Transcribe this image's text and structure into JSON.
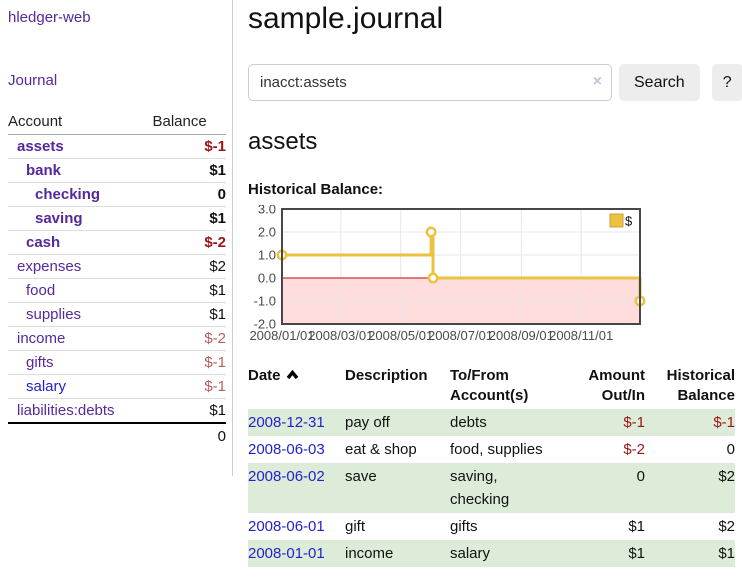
{
  "app": {
    "brand": "hledger-web",
    "nav_journal": "Journal"
  },
  "colors": {
    "link_purple": "#56289c",
    "link_blue": "#2222cc",
    "negative_red": "#9b1515",
    "negative_soft_red": "#b26060",
    "row_green": "#ddecd9",
    "chart_line_gold": "#EDC240"
  },
  "header": {
    "title": "sample.journal"
  },
  "search": {
    "value": "inacct:assets",
    "clear_label": "×",
    "button_label": "Search",
    "help_label": "?"
  },
  "sidebar": {
    "columns": {
      "account": "Account",
      "balance": "Balance"
    },
    "accounts": [
      {
        "name": "assets",
        "depth": 1,
        "balance": "$-1",
        "bold": true,
        "negative": true
      },
      {
        "name": "bank",
        "depth": 2,
        "balance": "$1",
        "bold": true
      },
      {
        "name": "checking",
        "depth": 3,
        "balance": "0",
        "bold": true
      },
      {
        "name": "saving",
        "depth": 3,
        "balance": "$1",
        "bold": true
      },
      {
        "name": "cash",
        "depth": 2,
        "balance": "$-2",
        "bold": true,
        "negative": true
      },
      {
        "name": "expenses",
        "depth": 1,
        "balance": "$2"
      },
      {
        "name": "food",
        "depth": 2,
        "balance": "$1"
      },
      {
        "name": "supplies",
        "depth": 2,
        "balance": "$1"
      },
      {
        "name": "income",
        "depth": 1,
        "balance": "$-2",
        "negative_soft": true
      },
      {
        "name": "gifts",
        "depth": 2,
        "balance": "$-1",
        "negative_soft": true
      },
      {
        "name": "salary",
        "depth": 2,
        "balance": "$-1",
        "negative_soft": true,
        "link_blue": true
      },
      {
        "name": "liabilities:debts",
        "depth": 1,
        "balance": "$1"
      }
    ],
    "total": "0"
  },
  "account_page": {
    "heading": "assets",
    "chart_label": "Historical Balance:"
  },
  "chart_data": {
    "type": "line",
    "step": true,
    "title": "Historical Balance",
    "series": [
      {
        "name": "$",
        "color": "#EDC240",
        "points": [
          [
            "2008-01-01",
            1
          ],
          [
            "2008-06-01",
            2
          ],
          [
            "2008-06-03",
            0
          ],
          [
            "2008-12-31",
            -1
          ]
        ]
      }
    ],
    "x_range": [
      "2008-01-01",
      "2008-12-31"
    ],
    "x_ticks": [
      "2008/01/01",
      "2008/03/01",
      "2008/05/01",
      "2008/07/01",
      "2008/09/01",
      "2008/11/01"
    ],
    "y_ticks": [
      3,
      2,
      1,
      0,
      -1,
      -2
    ],
    "ylim": [
      -2,
      3
    ],
    "grid": true,
    "legend": "$",
    "legend_position": "top-right",
    "negative_region_color": "#ffdddd",
    "zero_line_color": "#cc0000"
  },
  "transactions": {
    "columns": {
      "date": "Date",
      "description": "Description",
      "accounts": "To/From Account(s)",
      "amount": "Amount Out/In",
      "balance": "Historical Balance"
    },
    "rows": [
      {
        "date": "2008-12-31",
        "description": "pay off",
        "accounts": "debts",
        "amount": "$-1",
        "amount_negative": true,
        "balance": "$-1",
        "balance_negative": true
      },
      {
        "date": "2008-06-03",
        "description": "eat & shop",
        "accounts": "food, supplies",
        "amount": "$-2",
        "amount_negative": true,
        "balance": "0",
        "balance_negative": false
      },
      {
        "date": "2008-06-02",
        "description": "save",
        "accounts": "saving, checking",
        "amount": "0",
        "amount_negative": false,
        "balance": "$2",
        "balance_negative": false
      },
      {
        "date": "2008-06-01",
        "description": "gift",
        "accounts": "gifts",
        "amount": "$1",
        "amount_negative": false,
        "balance": "$2",
        "balance_negative": false
      },
      {
        "date": "2008-01-01",
        "description": "income",
        "accounts": "salary",
        "amount": "$1",
        "amount_negative": false,
        "balance": "$1",
        "balance_negative": false
      }
    ]
  }
}
